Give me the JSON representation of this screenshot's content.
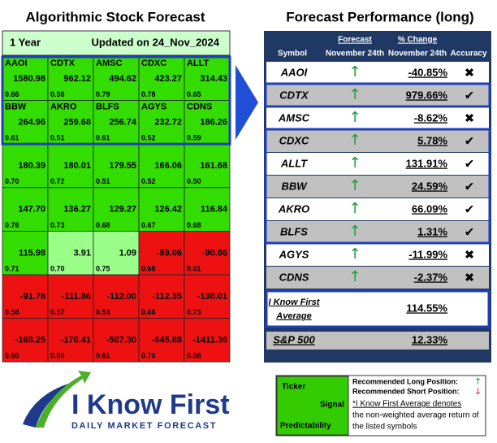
{
  "left": {
    "title": "Algorithmic Stock Forecast",
    "period": "1 Year",
    "updated": "Updated on 24_Nov_2024",
    "rows": [
      [
        {
          "ticker": "AAOI",
          "signal": "1580.98",
          "predictability": "0.66"
        },
        {
          "ticker": "CDTX",
          "signal": "962.12",
          "predictability": "0.56"
        },
        {
          "ticker": "AMSC",
          "signal": "494.62",
          "predictability": "0.79"
        },
        {
          "ticker": "CDXC",
          "signal": "423.27",
          "predictability": "0.78"
        },
        {
          "ticker": "ALLT",
          "signal": "314.43",
          "predictability": "0.65"
        }
      ],
      [
        {
          "ticker": "BBW",
          "signal": "264.96",
          "predictability": "0.61"
        },
        {
          "ticker": "AKRO",
          "signal": "259.68",
          "predictability": "0.51"
        },
        {
          "ticker": "BLFS",
          "signal": "256.74",
          "predictability": "0.61"
        },
        {
          "ticker": "AGYS",
          "signal": "232.72",
          "predictability": "0.52"
        },
        {
          "ticker": "CDNS",
          "signal": "186.26",
          "predictability": "0.59"
        }
      ],
      [
        {
          "signal": "180.39",
          "predictability": "0.70"
        },
        {
          "signal": "180.01",
          "predictability": "0.72"
        },
        {
          "signal": "179.55",
          "predictability": "0.51"
        },
        {
          "signal": "166.06",
          "predictability": "0.52"
        },
        {
          "signal": "161.68",
          "predictability": "0.50"
        }
      ],
      [
        {
          "signal": "147.70",
          "predictability": "0.76"
        },
        {
          "signal": "136.27",
          "predictability": "0.73"
        },
        {
          "signal": "129.27",
          "predictability": "0.68"
        },
        {
          "signal": "126.42",
          "predictability": "0.67"
        },
        {
          "signal": "116.84",
          "predictability": "0.68"
        }
      ],
      [
        {
          "signal": "115.98",
          "predictability": "0.71"
        },
        {
          "signal": "3.91",
          "predictability": "0.70"
        },
        {
          "signal": "1.09",
          "predictability": "0.75"
        },
        {
          "signal": "-89.06",
          "predictability": "0.68"
        },
        {
          "signal": "-90.86",
          "predictability": "0.61"
        }
      ],
      [
        {
          "signal": "-91.78",
          "predictability": "0.58"
        },
        {
          "signal": "-111.86",
          "predictability": "0.57"
        },
        {
          "signal": "-112.00",
          "predictability": "0.53"
        },
        {
          "signal": "-112.35",
          "predictability": "0.66"
        },
        {
          "signal": "-130.01",
          "predictability": "0.73"
        }
      ],
      [
        {
          "signal": "-168.25",
          "predictability": "0.60"
        },
        {
          "signal": "-170.41",
          "predictability": "0.80"
        },
        {
          "signal": "-587.30",
          "predictability": "0.61"
        },
        {
          "signal": "-645.88",
          "predictability": "0.70"
        },
        {
          "signal": "-1411.36",
          "predictability": "0.68"
        }
      ]
    ]
  },
  "right": {
    "title": "Forecast Performance (long)",
    "headers": {
      "symbol": "Symbol",
      "forecast": [
        "Forecast",
        "November 24th"
      ],
      "change": [
        "% Change",
        "November 24th"
      ],
      "accuracy": "Accuracy"
    },
    "rows": [
      {
        "symbol": "AAOI",
        "forecast": "↑",
        "change": "-40.85%",
        "accuracy": "✖"
      },
      {
        "symbol": "CDTX",
        "forecast": "↑",
        "change": "979.66%",
        "accuracy": "✔"
      },
      {
        "symbol": "AMSC",
        "forecast": "↑",
        "change": "-8.62%",
        "accuracy": "✖"
      },
      {
        "symbol": "CDXC",
        "forecast": "↑",
        "change": "5.78%",
        "accuracy": "✔"
      },
      {
        "symbol": "ALLT",
        "forecast": "↑",
        "change": "131.91%",
        "accuracy": "✔"
      },
      {
        "symbol": "BBW",
        "forecast": "↑",
        "change": "24.59%",
        "accuracy": "✔"
      },
      {
        "symbol": "AKRO",
        "forecast": "↑",
        "change": "66.09%",
        "accuracy": "✔"
      },
      {
        "symbol": "BLFS",
        "forecast": "↑",
        "change": "1.31%",
        "accuracy": "✔"
      },
      {
        "symbol": "AGYS",
        "forecast": "↑",
        "change": "-11.99%",
        "accuracy": "✖"
      },
      {
        "symbol": "CDNS",
        "forecast": "↑",
        "change": "-2.37%",
        "accuracy": "✖"
      }
    ],
    "average": {
      "label": [
        "I Know First",
        "Average"
      ],
      "change": "114.55%"
    },
    "benchmark": {
      "label": "S&P 500",
      "change": "12.33%"
    }
  },
  "legend": {
    "ticker": "Ticker",
    "signal": "Signal",
    "predictability": "Predictability",
    "long": "Recommended Long Position:",
    "long_symbol": "↑",
    "short": "Recommended Short Position:",
    "short_symbol": "↓",
    "note": [
      "*I Know First Average denotes",
      "the non-weighted average return of",
      "the listed symbols"
    ]
  },
  "logo": {
    "name": "I Know First",
    "tagline": "DAILY MARKET FORECAST"
  }
}
